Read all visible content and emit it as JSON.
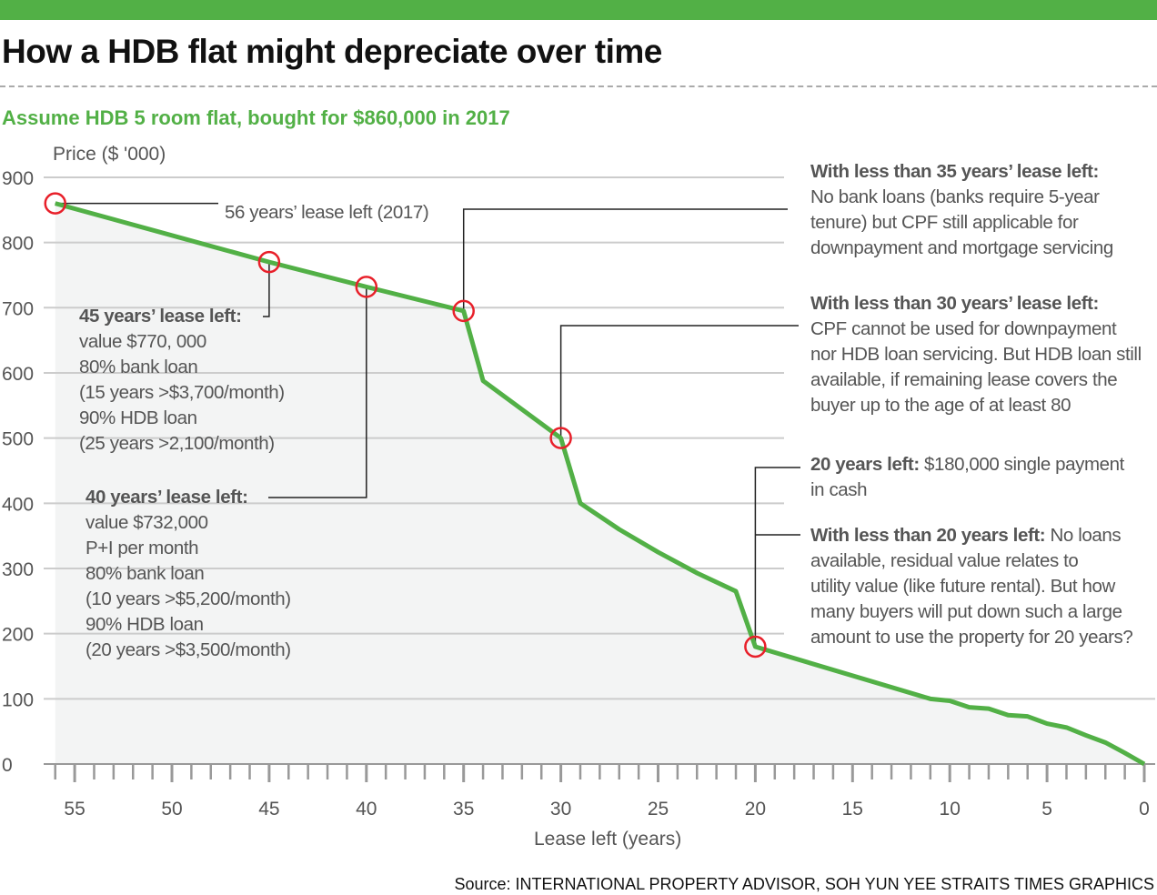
{
  "header": {
    "title": "How a HDB flat might depreciate over time",
    "subtitle": "Assume HDB 5 room flat, bought for $860,000 in 2017"
  },
  "colors": {
    "accent": "#52b046",
    "line": "#52b046",
    "marker": "#e8202a",
    "area": "#f3f4f4",
    "grid": "#cccccc"
  },
  "chart_data": {
    "type": "area",
    "title": "How a HDB flat might depreciate over time",
    "ylabel": "Price ($ '000)",
    "xlabel": "Lease left (years)",
    "xlim": [
      56,
      0
    ],
    "ylim": [
      0,
      900
    ],
    "x_ticks": [
      55,
      50,
      45,
      40,
      35,
      30,
      25,
      20,
      15,
      10,
      5,
      0
    ],
    "y_ticks": [
      0,
      100,
      200,
      300,
      400,
      500,
      600,
      700,
      800,
      900
    ],
    "grid": true,
    "series": [
      {
        "x": [
          56,
          45,
          40,
          35,
          34,
          30,
          29,
          27,
          25,
          23,
          21,
          20,
          11,
          10,
          9,
          8,
          7,
          6,
          5,
          4,
          3,
          2,
          1,
          0
        ],
        "y": [
          860,
          770,
          732,
          695,
          588,
          500,
          400,
          360,
          325,
          293,
          265,
          180,
          100,
          97,
          87,
          85,
          75,
          73,
          62,
          56,
          44,
          33,
          17,
          0
        ]
      }
    ],
    "highlighted_points": [
      56,
      45,
      40,
      35,
      30,
      20
    ]
  },
  "annotations": {
    "a56": "56 years’ lease left (2017)",
    "a45": {
      "title": "45 years’ lease left:",
      "lines": [
        "value $770, 000",
        "80% bank loan",
        "(15 years >$3,700/month)",
        "90% HDB loan",
        "(25 years >2,100/month)"
      ]
    },
    "a40": {
      "title": "40 years’ lease left:",
      "lines": [
        "value $732,000",
        "P+I per month",
        "80% bank loan",
        "(10 years >$5,200/month)",
        "90% HDB loan",
        "(20 years >$3,500/month)"
      ]
    },
    "a35": {
      "title": "With less than 35 years’ lease left:",
      "lines": [
        "No bank loans (banks require 5-year",
        "tenure) but CPF still applicable for",
        "downpayment and mortgage servicing"
      ]
    },
    "a30": {
      "title": "With less than 30 years’ lease left:",
      "lines": [
        "CPF cannot be used for downpayment",
        "nor HDB loan servicing. But HDB loan still",
        "available, if remaining lease covers the",
        "buyer up to the age of at least 80"
      ]
    },
    "a20": {
      "title": "20 years left:",
      "rest": " $180,000 single payment",
      "line2": "in cash"
    },
    "a20b": {
      "title": "With less than 20 years left:",
      "rest": " No loans",
      "lines": [
        "available, residual value relates to",
        "utility value (like future rental). But how",
        "many buyers will put down such a large",
        "amount to use the property for 20 years?"
      ]
    }
  },
  "footer": {
    "source": "Source: INTERNATIONAL PROPERTY ADVISOR, SOH YUN YEE   STRAITS TIMES GRAPHICS"
  }
}
